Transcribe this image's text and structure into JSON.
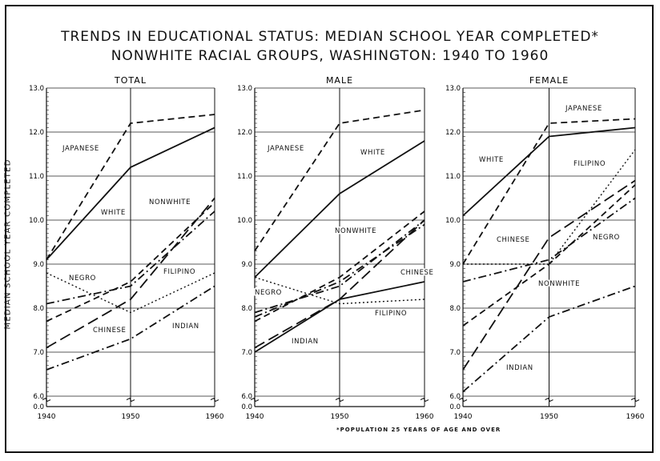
{
  "title_line1": "TRENDS IN EDUCATIONAL STATUS:  MEDIAN SCHOOL YEAR  COMPLETED*",
  "title_line2": "NONWHITE RACIAL GROUPS, WASHINGTON: 1940 TO 1960",
  "footnote": "*POPULATION 25 YEARS OF AGE AND OVER",
  "ylabel": "MEDIAN SCHOOL YEAR COMPLETED",
  "chart_data": [
    {
      "type": "line",
      "title": "TOTAL",
      "x": [
        1940,
        1950,
        1960
      ],
      "xticks": [
        "1940",
        "1950",
        "1960"
      ],
      "yticks": [
        "13.0",
        "12.0",
        "11.0",
        "10.0",
        "9.0",
        "8.0",
        "7.0",
        "6.0"
      ],
      "ylim": [
        6.0,
        13.0
      ],
      "series": [
        {
          "name": "JAPANESE",
          "style": "dash",
          "values": [
            9.1,
            12.2,
            12.4
          ]
        },
        {
          "name": "WHITE",
          "style": "solid",
          "values": [
            9.1,
            11.2,
            12.1
          ]
        },
        {
          "name": "NONWHITE",
          "style": "dash",
          "values": [
            7.7,
            8.6,
            10.4
          ]
        },
        {
          "name": "NEGRO",
          "style": "dashdot",
          "values": [
            8.1,
            8.5,
            10.2
          ]
        },
        {
          "name": "FILIPINO",
          "style": "dot",
          "values": [
            8.8,
            7.9,
            8.8
          ]
        },
        {
          "name": "CHINESE",
          "style": "longdash",
          "values": [
            7.1,
            8.2,
            10.5
          ]
        },
        {
          "name": "INDIAN",
          "style": "dashdot",
          "values": [
            6.6,
            7.3,
            8.5
          ]
        }
      ]
    },
    {
      "type": "line",
      "title": "MALE",
      "x": [
        1940,
        1950,
        1960
      ],
      "xticks": [
        "1940",
        "1950",
        "1960"
      ],
      "yticks": [
        "13.0",
        "12.0",
        "11.0",
        "10.0",
        "9.0",
        "8.0",
        "7.0",
        "6.0"
      ],
      "ylim": [
        6.0,
        13.0
      ],
      "series": [
        {
          "name": "JAPANESE",
          "style": "dash",
          "values": [
            9.3,
            12.2,
            12.5
          ]
        },
        {
          "name": "WHITE",
          "style": "solid",
          "values": [
            8.7,
            10.6,
            11.8
          ]
        },
        {
          "name": "NONWHITE",
          "style": "dash",
          "values": [
            7.7,
            8.7,
            10.2
          ]
        },
        {
          "name": "CHINESE",
          "style": "dashdot",
          "values": [
            7.8,
            8.6,
            9.9
          ]
        },
        {
          "name": "NEGRO",
          "style": "dashdot",
          "values": [
            7.9,
            8.5,
            10.0
          ]
        },
        {
          "name": "FILIPINO",
          "style": "dot",
          "values": [
            8.7,
            8.1,
            8.2
          ]
        },
        {
          "name": "INDIAN",
          "style": "solid",
          "values": [
            7.0,
            8.2,
            8.6
          ]
        },
        {
          "name": "",
          "style": "longdash",
          "values": [
            7.1,
            8.2,
            10.0
          ]
        }
      ]
    },
    {
      "type": "line",
      "title": "FEMALE",
      "x": [
        1940,
        1950,
        1960
      ],
      "xticks": [
        "1940",
        "1950",
        "1960"
      ],
      "yticks": [
        "13.0",
        "12.0",
        "11.0",
        "10.0",
        "9.0",
        "8.0",
        "7.0",
        "6.0"
      ],
      "ylim": [
        6.0,
        13.0
      ],
      "series": [
        {
          "name": "JAPANESE",
          "style": "dash",
          "values": [
            9.0,
            12.2,
            12.3
          ]
        },
        {
          "name": "WHITE",
          "style": "solid",
          "values": [
            10.1,
            11.9,
            12.1
          ]
        },
        {
          "name": "FILIPINO",
          "style": "dot",
          "values": [
            9.0,
            9.0,
            11.6
          ]
        },
        {
          "name": "CHINESE",
          "style": "longdash",
          "values": [
            6.6,
            9.6,
            10.9
          ]
        },
        {
          "name": "NEGRO",
          "style": "dashdot",
          "values": [
            8.6,
            9.1,
            10.5
          ]
        },
        {
          "name": "NONWHITE",
          "style": "dash",
          "values": [
            7.6,
            9.0,
            10.8
          ]
        },
        {
          "name": "INDIAN",
          "style": "dashdot",
          "values": [
            6.1,
            7.8,
            8.5
          ]
        }
      ]
    }
  ]
}
